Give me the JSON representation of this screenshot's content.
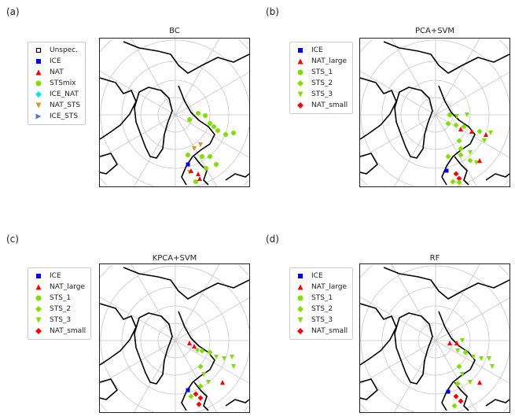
{
  "panels": [
    {
      "label": "(a)",
      "title": "BC",
      "legend": [
        {
          "name": "Unspec.",
          "shape": "square-open",
          "color": "#000000"
        },
        {
          "name": "ICE",
          "shape": "square",
          "color": "#0000ff"
        },
        {
          "name": "NAT",
          "shape": "triangle-up",
          "color": "#ff0000"
        },
        {
          "name": "STSmix",
          "shape": "circle",
          "color": "#7fe000"
        },
        {
          "name": "ICE_NAT",
          "shape": "diamond",
          "color": "#00e5ee"
        },
        {
          "name": "NAT_STS",
          "shape": "triangle-down",
          "color": "#d4952a"
        },
        {
          "name": "ICE_STS",
          "shape": "triangle-right",
          "color": "#4f7fbf"
        }
      ]
    },
    {
      "label": "(b)",
      "title": "PCA+SVM",
      "legend": [
        {
          "name": "ICE",
          "shape": "square",
          "color": "#0000ff"
        },
        {
          "name": "NAT_large",
          "shape": "triangle-up",
          "color": "#ff0000"
        },
        {
          "name": "STS_1",
          "shape": "circle",
          "color": "#7fe000"
        },
        {
          "name": "STS_2",
          "shape": "diamond",
          "color": "#7fe000"
        },
        {
          "name": "STS_3",
          "shape": "triangle-down",
          "color": "#7fe000"
        },
        {
          "name": "NAT_small",
          "shape": "diamond",
          "color": "#ff0000"
        }
      ]
    },
    {
      "label": "(c)",
      "title": "KPCA+SVM",
      "legend": [
        {
          "name": "ICE",
          "shape": "square",
          "color": "#0000ff"
        },
        {
          "name": "NAT_large",
          "shape": "triangle-up",
          "color": "#ff0000"
        },
        {
          "name": "STS_1",
          "shape": "circle",
          "color": "#7fe000"
        },
        {
          "name": "STS_2",
          "shape": "diamond",
          "color": "#7fe000"
        },
        {
          "name": "STS_3",
          "shape": "triangle-down",
          "color": "#7fe000"
        },
        {
          "name": "NAT_small",
          "shape": "diamond",
          "color": "#ff0000"
        }
      ]
    },
    {
      "label": "(d)",
      "title": "RF",
      "legend": [
        {
          "name": "ICE",
          "shape": "square",
          "color": "#0000ff"
        },
        {
          "name": "NAT_large",
          "shape": "triangle-up",
          "color": "#ff0000"
        },
        {
          "name": "STS_1",
          "shape": "circle",
          "color": "#7fe000"
        },
        {
          "name": "STS_2",
          "shape": "diamond",
          "color": "#7fe000"
        },
        {
          "name": "STS_3",
          "shape": "triangle-down",
          "color": "#7fe000"
        },
        {
          "name": "NAT_small",
          "shape": "diamond",
          "color": "#ff0000"
        }
      ]
    }
  ]
}
